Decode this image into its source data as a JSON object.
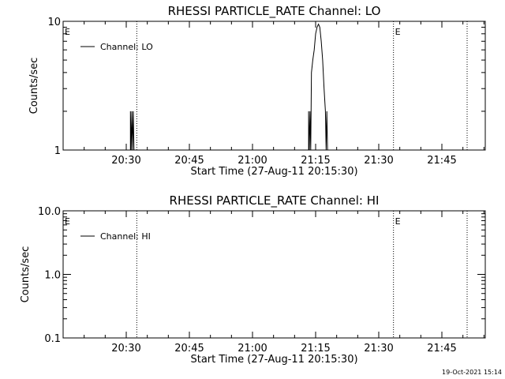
{
  "chart_data": [
    {
      "type": "line",
      "title": "RHESSI PARTICLE_RATE Channel: LO",
      "xlabel": "Start Time (27-Aug-11 20:15:30)",
      "ylabel": "Counts/sec",
      "y_scale": "log",
      "ylim": [
        1,
        10
      ],
      "y_ticks": [
        1,
        10
      ],
      "y_tick_labels": [
        "1",
        "10"
      ],
      "x_ticks": [
        "20:30",
        "20:45",
        "21:00",
        "21:15",
        "21:30",
        "21:45"
      ],
      "legend": {
        "position": "top-left",
        "label": "Channel: LO"
      },
      "markers": [
        {
          "time": "20:32:30",
          "label": ""
        },
        {
          "time": "21:33:30",
          "label": "E"
        },
        {
          "time": "21:51",
          "label": ""
        }
      ],
      "edge_label": "E",
      "series": [
        {
          "name": "Channel: LO",
          "points": [
            [
              "20:31:00",
              1
            ],
            [
              "20:31:00",
              2
            ],
            [
              "20:31:10",
              1
            ],
            [
              "20:31:20",
              2
            ],
            [
              "20:31:30",
              1
            ],
            [
              "20:31:40",
              2
            ],
            [
              "20:31:50",
              1
            ],
            [
              "21:13:20",
              1
            ],
            [
              "21:13:20",
              2
            ],
            [
              "21:13:30",
              1
            ],
            [
              "21:13:40",
              2
            ],
            [
              "21:13:50",
              1
            ],
            [
              "21:14:00",
              4
            ],
            [
              "21:14:20",
              5
            ],
            [
              "21:14:40",
              6
            ],
            [
              "21:15:00",
              8
            ],
            [
              "21:15:20",
              9
            ],
            [
              "21:15:40",
              9.5
            ],
            [
              "21:16:00",
              9
            ],
            [
              "21:16:20",
              7
            ],
            [
              "21:16:40",
              5
            ],
            [
              "21:17:00",
              3
            ],
            [
              "21:17:20",
              2
            ],
            [
              "21:17:30",
              1
            ],
            [
              "21:17:40",
              2
            ],
            [
              "21:17:50",
              1
            ],
            [
              "21:18:00",
              1
            ]
          ]
        }
      ]
    },
    {
      "type": "line",
      "title": "RHESSI PARTICLE_RATE Channel: HI",
      "xlabel": "Start Time (27-Aug-11 20:15:30)",
      "ylabel": "Counts/sec",
      "y_scale": "log",
      "ylim": [
        0.1,
        10
      ],
      "y_ticks": [
        0.1,
        1,
        10
      ],
      "y_tick_labels": [
        "0.1",
        "1.0",
        "10.0"
      ],
      "x_ticks": [
        "20:30",
        "20:45",
        "21:00",
        "21:15",
        "21:30",
        "21:45"
      ],
      "legend": {
        "position": "top-left",
        "label": "Channel: HI"
      },
      "markers": [
        {
          "time": "20:32:30",
          "label": ""
        },
        {
          "time": "21:33:30",
          "label": "E"
        },
        {
          "time": "21:51",
          "label": ""
        }
      ],
      "edge_label": "E",
      "series": [
        {
          "name": "Channel: HI",
          "points": []
        }
      ]
    }
  ],
  "footer": {
    "timestamp": "19-Oct-2021 15:14"
  }
}
